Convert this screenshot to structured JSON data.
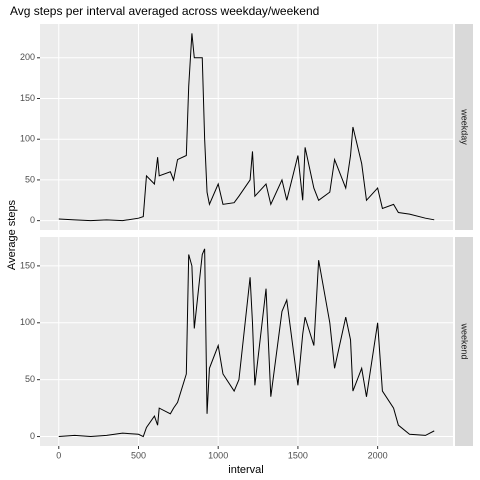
{
  "chart_data": {
    "type": "line",
    "title": "Avg steps per interval averaged across weekday/weekend",
    "x_label": "interval",
    "y_label": "Average steps",
    "color": "#000000",
    "grid": true,
    "xlim": [
      -117.75,
      2472.75
    ],
    "xticks": [
      0,
      500,
      1000,
      1500,
      2000
    ],
    "x": [
      0,
      100,
      200,
      300,
      400,
      500,
      530,
      550,
      600,
      620,
      630,
      700,
      720,
      745,
      800,
      815,
      835,
      850,
      900,
      915,
      930,
      945,
      1000,
      1030,
      1100,
      1130,
      1200,
      1215,
      1230,
      1300,
      1330,
      1400,
      1430,
      1500,
      1530,
      1545,
      1600,
      1630,
      1700,
      1730,
      1800,
      1830,
      1845,
      1900,
      1930,
      2000,
      2030,
      2100,
      2130,
      2200,
      2300,
      2355
    ],
    "facets": [
      {
        "name": "weekday",
        "ylim": [
          -11.5,
          241.5
        ],
        "yticks": [
          0,
          50,
          100,
          150,
          200
        ],
        "values": [
          2,
          1,
          0,
          1,
          0,
          3,
          5,
          55,
          45,
          78,
          55,
          60,
          50,
          75,
          80,
          165,
          230,
          200,
          200,
          100,
          35,
          20,
          45,
          20,
          22,
          30,
          50,
          85,
          30,
          45,
          20,
          50,
          25,
          80,
          25,
          90,
          40,
          25,
          35,
          75,
          40,
          80,
          115,
          70,
          25,
          40,
          15,
          20,
          10,
          8,
          3,
          1
        ]
      },
      {
        "name": "weekend",
        "ylim": [
          -8.3,
          175.4
        ],
        "yticks": [
          0,
          50,
          100,
          150
        ],
        "values": [
          0,
          1,
          0,
          1,
          3,
          2,
          0,
          8,
          18,
          10,
          25,
          20,
          25,
          30,
          55,
          160,
          150,
          95,
          160,
          165,
          20,
          60,
          80,
          55,
          40,
          50,
          140,
          100,
          45,
          130,
          35,
          110,
          120,
          45,
          90,
          105,
          80,
          155,
          100,
          60,
          105,
          85,
          40,
          60,
          35,
          100,
          40,
          25,
          10,
          2,
          1,
          5
        ]
      }
    ]
  }
}
